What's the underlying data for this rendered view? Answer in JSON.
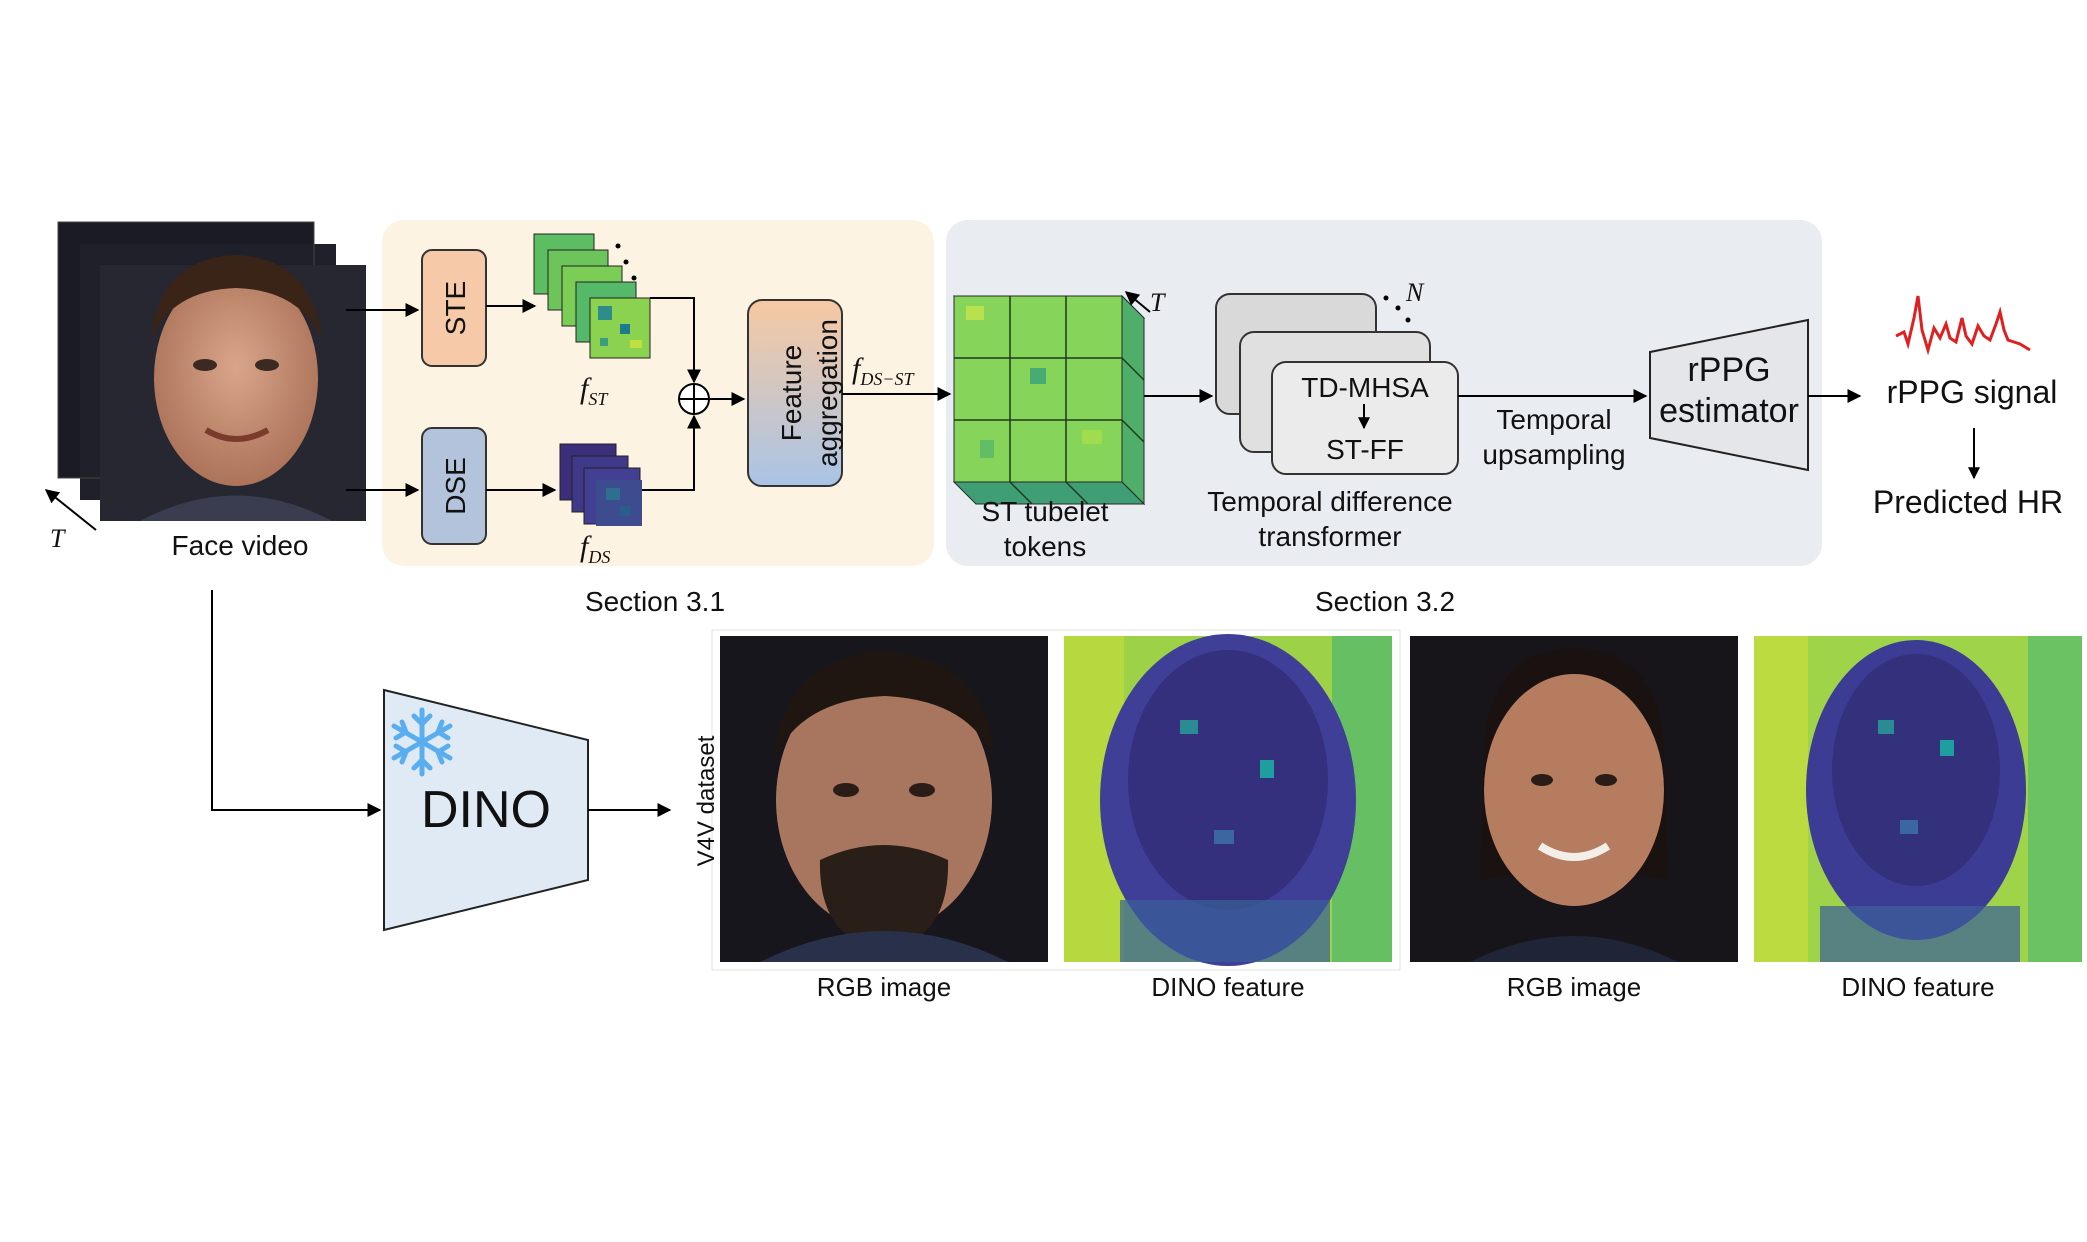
{
  "face_video": {
    "label": "Face video",
    "time_symbol": "T"
  },
  "section1": {
    "caption": "Section 3.1",
    "ste_label": "STE",
    "dse_label": "DSE",
    "f_st_label": "f",
    "f_st_sub": "ST",
    "f_ds_label": "f",
    "f_ds_sub": "DS",
    "aggregation_label": "Feature aggregation",
    "f_dsst_label": "f",
    "f_dsst_sub": "DS−ST",
    "sum_symbol": "⊕"
  },
  "section2": {
    "caption": "Section 3.2",
    "tubelet_label_line1": "ST tubelet",
    "tubelet_label_line2": "tokens",
    "time_symbol": "T",
    "n_symbol": "N",
    "tdmhsa_label": "TD-MHSA",
    "stff_label": "ST-FF",
    "transformer_line1": "Temporal difference",
    "transformer_line2": "transformer",
    "upsampling_line1": "Temporal",
    "upsampling_line2": "upsampling"
  },
  "estimator": {
    "line1": "rPPG",
    "line2": "estimator",
    "signal_label": "rPPG signal",
    "hr_label": "Predicted HR"
  },
  "dino": {
    "label": "DINO",
    "icon": "snowflake-icon",
    "dataset_label": "V4V dataset",
    "captions": [
      "RGB image",
      "DINO feature",
      "RGB image",
      "DINO feature"
    ]
  },
  "colors": {
    "section1_bg": "#fdf3e3",
    "section2_bg": "#e9ecf1",
    "ste_fill": "#f6c9a8",
    "dse_fill": "#b4c3dc",
    "dino_fill": "#dfeaf4",
    "signal": "#e02020",
    "snowflake": "#5aaef0"
  }
}
